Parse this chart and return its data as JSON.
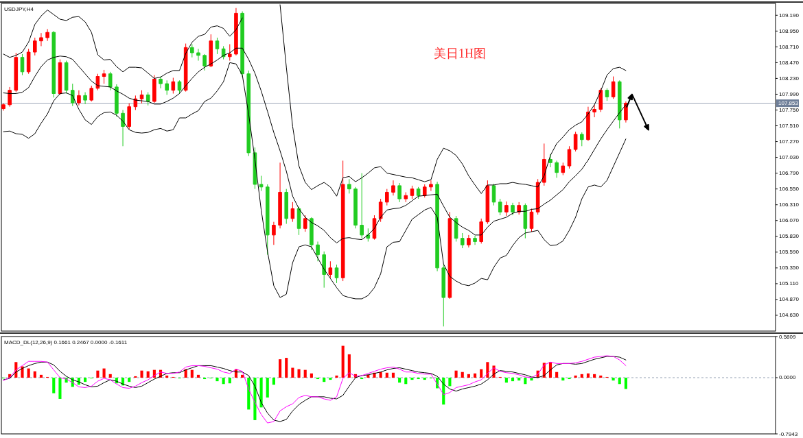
{
  "chart_data": [
    {
      "type": "candlestick",
      "title": "美日1H图",
      "subtitle": "USDJPY,H4",
      "categories": [
        null,
        null,
        null,
        null,
        null,
        null,
        null,
        null,
        null,
        null,
        null,
        null,
        null,
        null,
        null,
        null,
        null,
        null,
        null,
        null,
        null,
        null,
        null,
        null,
        null,
        null,
        null,
        null,
        null,
        null,
        null,
        null,
        null,
        null,
        null,
        null,
        null,
        null,
        null,
        null,
        null,
        null,
        null,
        null,
        null,
        null,
        null,
        null,
        null,
        null,
        null,
        null,
        null,
        null,
        null,
        null,
        null,
        null,
        null,
        null,
        null,
        null,
        null,
        null,
        null,
        null,
        null,
        null,
        null,
        null,
        null,
        null,
        null,
        null,
        null,
        null,
        null,
        null,
        null,
        null,
        null,
        null,
        null,
        null,
        null,
        null,
        null,
        null,
        null,
        null,
        null,
        null,
        null,
        null,
        null,
        null,
        null,
        null,
        null,
        null
      ],
      "ohlc": [
        [
          107.77,
          107.85,
          107.74,
          107.83
        ],
        [
          107.83,
          108.1,
          107.8,
          108.05
        ],
        [
          108.05,
          108.62,
          108.02,
          108.55
        ],
        [
          108.55,
          108.6,
          108.28,
          108.33
        ],
        [
          108.33,
          108.68,
          108.3,
          108.63
        ],
        [
          108.63,
          108.85,
          108.58,
          108.8
        ],
        [
          108.8,
          108.92,
          108.72,
          108.85
        ],
        [
          108.85,
          108.98,
          108.8,
          108.93
        ],
        [
          108.93,
          108.95,
          107.94,
          108.0
        ],
        [
          108.0,
          108.52,
          107.98,
          108.47
        ],
        [
          108.47,
          108.5,
          108.0,
          108.05
        ],
        [
          108.05,
          108.15,
          107.81,
          107.86
        ],
        [
          107.86,
          108.05,
          107.82,
          107.97
        ],
        [
          107.97,
          108.02,
          107.84,
          107.9
        ],
        [
          107.9,
          108.12,
          107.88,
          108.08
        ],
        [
          108.08,
          108.3,
          108.05,
          108.26
        ],
        [
          108.26,
          108.36,
          108.15,
          108.3
        ],
        [
          108.3,
          108.33,
          108.05,
          108.1
        ],
        [
          108.1,
          108.14,
          107.65,
          107.7
        ],
        [
          107.7,
          107.75,
          107.2,
          107.5
        ],
        [
          107.5,
          107.85,
          107.46,
          107.8
        ],
        [
          107.8,
          107.97,
          107.75,
          107.92
        ],
        [
          107.92,
          108.05,
          107.85,
          107.98
        ],
        [
          107.98,
          108.02,
          107.82,
          107.88
        ],
        [
          107.88,
          108.28,
          107.86,
          108.22
        ],
        [
          108.22,
          108.26,
          108.08,
          108.15
        ],
        [
          108.15,
          108.2,
          107.98,
          108.05
        ],
        [
          108.05,
          108.24,
          108.0,
          108.18
        ],
        [
          108.18,
          108.2,
          108.0,
          108.05
        ],
        [
          108.05,
          108.76,
          108.03,
          108.7
        ],
        [
          108.7,
          108.75,
          108.55,
          108.62
        ],
        [
          108.62,
          108.68,
          108.5,
          108.58
        ],
        [
          108.58,
          108.6,
          108.35,
          108.42
        ],
        [
          108.42,
          108.9,
          108.4,
          108.8
        ],
        [
          108.8,
          108.85,
          108.6,
          108.68
        ],
        [
          108.68,
          108.72,
          108.52,
          108.56
        ],
        [
          108.56,
          108.75,
          108.5,
          108.6
        ],
        [
          108.6,
          109.3,
          108.58,
          109.22
        ],
        [
          109.22,
          109.25,
          108.25,
          108.3
        ],
        [
          108.3,
          108.35,
          107.05,
          107.1
        ],
        [
          107.1,
          107.18,
          106.55,
          106.62
        ],
        [
          106.62,
          106.75,
          106.52,
          106.58
        ],
        [
          106.58,
          106.62,
          105.55,
          105.85
        ],
        [
          105.85,
          106.05,
          105.7,
          106.0
        ],
        [
          106.0,
          106.95,
          105.95,
          106.5
        ],
        [
          106.5,
          106.55,
          106.02,
          106.1
        ],
        [
          106.1,
          106.35,
          106.05,
          106.25
        ],
        [
          106.25,
          106.28,
          105.85,
          105.95
        ],
        [
          105.95,
          106.15,
          105.9,
          106.1
        ],
        [
          106.1,
          106.12,
          105.62,
          105.7
        ],
        [
          105.7,
          105.75,
          105.45,
          105.55
        ],
        [
          105.55,
          105.6,
          105.05,
          105.25
        ],
        [
          105.25,
          105.45,
          105.2,
          105.35
        ],
        [
          105.35,
          105.4,
          105.12,
          105.2
        ],
        [
          105.2,
          106.98,
          105.15,
          106.62
        ],
        [
          106.62,
          106.7,
          106.48,
          106.55
        ],
        [
          106.55,
          106.58,
          105.95,
          106.0
        ],
        [
          106.0,
          106.79,
          105.8,
          105.85
        ],
        [
          105.85,
          105.95,
          105.75,
          105.8
        ],
        [
          105.8,
          106.15,
          105.78,
          106.1
        ],
        [
          106.1,
          106.4,
          106.05,
          106.35
        ],
        [
          106.35,
          106.55,
          106.3,
          106.5
        ],
        [
          106.5,
          106.68,
          106.45,
          106.6
        ],
        [
          106.6,
          106.64,
          106.35,
          106.4
        ],
        [
          106.4,
          106.5,
          106.35,
          106.45
        ],
        [
          106.45,
          106.6,
          106.4,
          106.55
        ],
        [
          106.55,
          106.58,
          106.4,
          106.45
        ],
        [
          106.45,
          106.62,
          106.42,
          106.58
        ],
        [
          106.58,
          106.68,
          106.52,
          106.62
        ],
        [
          106.62,
          106.66,
          105.3,
          105.35
        ],
        [
          105.35,
          105.4,
          104.46,
          104.9
        ],
        [
          104.9,
          106.2,
          104.88,
          106.1
        ],
        [
          106.1,
          106.14,
          105.75,
          105.8
        ],
        [
          105.8,
          105.88,
          105.65,
          105.7
        ],
        [
          105.7,
          105.85,
          105.66,
          105.8
        ],
        [
          105.8,
          105.84,
          105.7,
          105.75
        ],
        [
          105.75,
          106.1,
          105.72,
          106.05
        ],
        [
          106.05,
          106.68,
          106.02,
          106.6
        ],
        [
          106.6,
          106.63,
          106.3,
          106.35
        ],
        [
          106.35,
          106.4,
          106.15,
          106.2
        ],
        [
          106.2,
          106.36,
          106.14,
          106.3
        ],
        [
          106.3,
          106.34,
          106.15,
          106.2
        ],
        [
          106.2,
          106.35,
          106.16,
          106.3
        ],
        [
          106.3,
          106.33,
          105.8,
          105.95
        ],
        [
          105.95,
          106.25,
          105.9,
          106.2
        ],
        [
          106.2,
          106.7,
          106.16,
          106.65
        ],
        [
          106.65,
          107.24,
          106.6,
          107.0
        ],
        [
          107.0,
          107.08,
          106.88,
          106.95
        ],
        [
          106.95,
          106.98,
          106.72,
          106.8
        ],
        [
          106.8,
          106.95,
          106.76,
          106.9
        ],
        [
          106.9,
          107.2,
          106.86,
          107.15
        ],
        [
          107.15,
          107.42,
          107.12,
          107.38
        ],
        [
          107.38,
          107.41,
          107.2,
          107.3
        ],
        [
          107.3,
          107.8,
          107.28,
          107.72
        ],
        [
          107.72,
          107.83,
          107.64,
          107.76
        ],
        [
          107.76,
          108.08,
          107.72,
          108.05
        ],
        [
          108.05,
          108.08,
          107.89,
          107.95
        ],
        [
          107.95,
          108.26,
          107.92,
          108.18
        ],
        [
          108.18,
          108.2,
          107.47,
          107.6
        ],
        [
          107.6,
          107.88,
          107.56,
          107.853
        ]
      ],
      "colors": [
        "#ff0000",
        "#ff0000",
        "#ff0000",
        "#22cc22",
        "#ff0000",
        "#ff0000",
        "#ff0000",
        "#ff0000",
        "#22cc22",
        "#ff0000",
        "#22cc22",
        "#22cc22",
        "#ff0000",
        "#22cc22",
        "#ff0000",
        "#ff0000",
        "#ff0000",
        "#22cc22",
        "#22cc22",
        "#22cc22",
        "#ff0000",
        "#ff0000",
        "#ff0000",
        "#22cc22",
        "#ff0000",
        "#22cc22",
        "#22cc22",
        "#ff0000",
        "#22cc22",
        "#ff0000",
        "#22cc22",
        "#22cc22",
        "#22cc22",
        "#ff0000",
        "#22cc22",
        "#22cc22",
        "#ff0000",
        "#ff0000",
        "#22cc22",
        "#22cc22",
        "#22cc22",
        "#22cc22",
        "#22cc22",
        "#ff0000",
        "#ff0000",
        "#22cc22",
        "#ff0000",
        "#22cc22",
        "#ff0000",
        "#22cc22",
        "#22cc22",
        "#22cc22",
        "#ff0000",
        "#22cc22",
        "#ff0000",
        "#22cc22",
        "#22cc22",
        "#22cc22",
        "#22cc22",
        "#ff0000",
        "#ff0000",
        "#ff0000",
        "#ff0000",
        "#22cc22",
        "#ff0000",
        "#ff0000",
        "#22cc22",
        "#ff0000",
        "#ff0000",
        "#22cc22",
        "#22cc22",
        "#ff0000",
        "#22cc22",
        "#22cc22",
        "#ff0000",
        "#22cc22",
        "#ff0000",
        "#ff0000",
        "#22cc22",
        "#22cc22",
        "#ff0000",
        "#22cc22",
        "#ff0000",
        "#22cc22",
        "#ff0000",
        "#ff0000",
        "#ff0000",
        "#22cc22",
        "#22cc22",
        "#ff0000",
        "#ff0000",
        "#ff0000",
        "#22cc22",
        "#ff0000",
        "#ff0000",
        "#ff0000",
        "#22cc22",
        "#ff0000",
        "#22cc22",
        "#ff0000"
      ],
      "series": [
        {
          "type": "line",
          "color": "#000000",
          "values": [
            108.6,
            108.55,
            108.58,
            108.63,
            108.78,
            109.05,
            109.18,
            109.27,
            109.2,
            109.13,
            109.11,
            109.16,
            109.17,
            109.09,
            108.93,
            108.59,
            108.51,
            108.52,
            108.41,
            108.33,
            108.4,
            108.4,
            108.39,
            108.31,
            108.23,
            108.25,
            108.31,
            108.35,
            108.35,
            108.61,
            108.78,
            108.87,
            108.9,
            109.01,
            109.03,
            108.99,
            108.87,
            108.97,
            109.15,
            null,
            null,
            null,
            null,
            null,
            109.35,
            108.4,
            107.5,
            106.9,
            106.65,
            106.54,
            106.6,
            106.65,
            106.58,
            106.44,
            106.72,
            106.74,
            106.66,
            106.72,
            106.79,
            106.87,
            106.89,
            106.79,
            106.77,
            106.75,
            106.73,
            106.72,
            106.69,
            106.66,
            106.69,
            107.0,
            107.17,
            107.13,
            107.06,
            106.93,
            106.75,
            106.61,
            106.48,
            106.61,
            106.61,
            106.63,
            106.63,
            106.65,
            106.63,
            106.62,
            106.6,
            106.58,
            106.75,
            107.06,
            107.24,
            107.34,
            107.45,
            107.52,
            107.57,
            107.69,
            107.83,
            108.04,
            108.28,
            108.38,
            108.4,
            108.35
          ]
        },
        {
          "type": "line",
          "color": "#000000",
          "values": [
            108.01,
            108.0,
            108.0,
            108.02,
            108.09,
            108.26,
            108.41,
            108.51,
            108.55,
            108.57,
            108.56,
            108.52,
            108.41,
            108.3,
            108.19,
            108.12,
            108.11,
            108.1,
            108.04,
            107.99,
            107.93,
            107.9,
            107.89,
            107.88,
            107.84,
            107.84,
            107.88,
            107.93,
            108.0,
            108.12,
            108.23,
            108.33,
            108.4,
            108.45,
            108.51,
            108.58,
            108.62,
            108.69,
            108.69,
            108.52,
            108.31,
            108.04,
            107.73,
            107.41,
            107.13,
            106.82,
            106.44,
            106.25,
            106.12,
            106.04,
            105.99,
            105.92,
            105.81,
            105.73,
            105.8,
            105.81,
            105.79,
            105.78,
            105.85,
            105.95,
            106.12,
            106.23,
            106.25,
            106.26,
            106.3,
            106.37,
            106.44,
            106.45,
            106.46,
            106.47,
            106.29,
            106.12,
            106.04,
            105.97,
            105.92,
            105.85,
            105.85,
            105.97,
            106.06,
            106.09,
            106.12,
            106.18,
            106.21,
            106.21,
            106.24,
            106.25,
            106.32,
            106.38,
            106.46,
            106.54,
            106.66,
            106.75,
            106.85,
            106.99,
            107.15,
            107.31,
            107.45,
            107.58,
            107.71,
            107.83
          ]
        },
        {
          "type": "line",
          "color": "#000000",
          "values": [
            107.42,
            107.43,
            107.39,
            107.38,
            107.32,
            107.39,
            107.55,
            107.69,
            107.89,
            108.0,
            108.01,
            107.97,
            107.76,
            107.6,
            107.53,
            107.65,
            107.71,
            107.72,
            107.67,
            107.58,
            107.45,
            107.41,
            107.4,
            107.41,
            107.45,
            107.47,
            107.43,
            107.45,
            107.63,
            107.63,
            107.69,
            107.74,
            107.88,
            107.93,
            108.04,
            108.18,
            108.47,
            108.45,
            108.28,
            107.69,
            107.0,
            106.23,
            105.6,
            105.08,
            104.9,
            104.95,
            105.43,
            105.67,
            105.7,
            105.67,
            105.5,
            105.33,
            105.19,
            105.05,
            104.93,
            104.9,
            104.88,
            104.88,
            104.93,
            105.05,
            105.26,
            105.67,
            105.74,
            105.75,
            105.92,
            106.09,
            106.16,
            106.23,
            106.27,
            106.12,
            105.41,
            105.22,
            105.15,
            105.1,
            105.08,
            105.12,
            105.19,
            105.17,
            105.36,
            105.5,
            105.54,
            105.69,
            105.81,
            105.88,
            105.9,
            105.92,
            105.78,
            105.69,
            105.7,
            105.76,
            105.92,
            106.12,
            106.4,
            106.58,
            106.61,
            106.58,
            106.68,
            106.89,
            107.1,
            107.31
          ]
        }
      ],
      "ylim": [
        104.39,
        109.37
      ],
      "yticks": [
        {
          "value": 109.19,
          "label": "109.190"
        },
        {
          "value": 108.95,
          "label": "108.950"
        },
        {
          "value": 108.71,
          "label": "108.710"
        },
        {
          "value": 108.47,
          "label": "108.470"
        },
        {
          "value": 108.23,
          "label": "108.230"
        },
        {
          "value": 107.99,
          "label": "107.990"
        },
        {
          "value": 107.75,
          "label": "107.750"
        },
        {
          "value": 107.51,
          "label": "107.510"
        },
        {
          "value": 107.27,
          "label": "107.270"
        },
        {
          "value": 107.03,
          "label": "107.030"
        },
        {
          "value": 106.79,
          "label": "106.790"
        },
        {
          "value": 106.55,
          "label": "106.550"
        },
        {
          "value": 106.31,
          "label": "106.310"
        },
        {
          "value": 106.07,
          "label": "106.070"
        },
        {
          "value": 105.83,
          "label": "105.830"
        },
        {
          "value": 105.59,
          "label": "105.590"
        },
        {
          "value": 105.35,
          "label": "105.350"
        },
        {
          "value": 105.11,
          "label": "105.110"
        },
        {
          "value": 104.87,
          "label": "104.870"
        },
        {
          "value": 104.63,
          "label": "104.630"
        }
      ],
      "ref_lines": [
        {
          "axis": "y",
          "value": 107.853,
          "label": "107.853",
          "color": "#6f7f99"
        }
      ],
      "tick_labels": "y"
    },
    {
      "type": "bar",
      "title": "MACD_DL(12,26,9) 0.1661 0.2467 0.0000 -0.1611",
      "categories": [
        null,
        null,
        null,
        null,
        null,
        null,
        null,
        null,
        null,
        null,
        null,
        null,
        null,
        null,
        null,
        null,
        null,
        null,
        null,
        null,
        null,
        null,
        null,
        null,
        null,
        null,
        null,
        null,
        null,
        null,
        null,
        null,
        null,
        null,
        null,
        null,
        null,
        null,
        null,
        null,
        null,
        null,
        null,
        null,
        null,
        null,
        null,
        null,
        null,
        null,
        null,
        null,
        null,
        null,
        null,
        null,
        null,
        null,
        null,
        null,
        null,
        null,
        null,
        null,
        null,
        null,
        null,
        null,
        null,
        null,
        null,
        null,
        null,
        null,
        null,
        null,
        null,
        null,
        null,
        null,
        null,
        null,
        null,
        null,
        null,
        null,
        null,
        null,
        null,
        null,
        null,
        null,
        null,
        null,
        null,
        null,
        null,
        null,
        null,
        null
      ],
      "series": [
        {
          "type": "bar",
          "colors": [
            "#00ff00",
            "#ff0000",
            "#ff0000",
            "#ff0000",
            "#ff0000",
            "#ff0000",
            "#ff0000",
            "#ff0000",
            "#00ff00",
            "#00ff00",
            "#00ff00",
            "#00ff00",
            "#00ff00",
            "#00ff00",
            "#00ff00",
            "#ff0000",
            "#ff0000",
            "#ff0000",
            "#00ff00",
            "#00ff00",
            "#00ff00",
            "#ff0000",
            "#ff0000",
            "#ff0000",
            "#ff0000",
            "#ff0000",
            "#ff0000",
            "#ff0000",
            "#00ff00",
            "#ff0000",
            "#ff0000",
            "#ff0000",
            "#00ff00",
            "#00ff00",
            "#00ff00",
            "#00ff00",
            "#00ff00",
            "#ff0000",
            "#ff0000",
            "#00ff00",
            "#00ff00",
            "#00ff00",
            "#00ff00",
            "#00ff00",
            "#ff0000",
            "#ff0000",
            "#ff0000",
            "#ff0000",
            "#ff0000",
            "#ff0000",
            "#00ff00",
            "#00ff00",
            "#00ff00",
            "#ff0000",
            "#ff0000",
            "#ff0000",
            "#ff0000",
            "#00ff00",
            "#ff0000",
            "#ff0000",
            "#ff0000",
            "#ff0000",
            "#ff0000",
            "#00ff00",
            "#00ff00",
            "#00ff00",
            "#00ff00",
            "#00ff00",
            "#00ff00",
            "#00ff00",
            "#00ff00",
            "#00ff00",
            "#ff0000",
            "#ff0000",
            "#ff0000",
            "#ff0000",
            "#ff0000",
            "#ff0000",
            "#ff0000",
            "#ff0000",
            "#00ff00",
            "#00ff00",
            "#00ff00",
            "#00ff00",
            "#00ff00",
            "#ff0000",
            "#ff0000",
            "#ff0000",
            "#ff0000",
            "#00ff00",
            "#00ff00",
            "#ff0000",
            "#ff0000",
            "#ff0000",
            "#ff0000",
            "#ff0000",
            "#ff0000",
            "#00ff00",
            "#00ff00",
            "#00ff00"
          ],
          "values": [
            -0.01,
            0.05,
            0.22,
            0.16,
            0.13,
            0.09,
            0.04,
            0.01,
            -0.22,
            -0.3,
            -0.07,
            -0.13,
            -0.1,
            -0.06,
            -0.01,
            0.1,
            0.13,
            0.05,
            -0.08,
            -0.11,
            -0.06,
            0.02,
            0.1,
            0.09,
            0.11,
            0.11,
            0.03,
            0.01,
            -0.01,
            0.12,
            0.11,
            0.04,
            -0.02,
            -0.01,
            -0.05,
            -0.09,
            -0.08,
            0.12,
            0.04,
            -0.45,
            -0.6,
            -0.42,
            -0.28,
            -0.1,
            0.26,
            0.28,
            0.14,
            0.12,
            0.11,
            0.06,
            -0.02,
            -0.06,
            -0.03,
            0.03,
            0.45,
            0.33,
            0.05,
            -0.02,
            0.04,
            0.07,
            0.08,
            0.07,
            0.07,
            -0.07,
            -0.09,
            -0.03,
            -0.02,
            -0.03,
            -0.01,
            -0.15,
            -0.38,
            -0.12,
            0.1,
            0.08,
            0.05,
            0.06,
            0.12,
            0.22,
            0.17,
            0.01,
            -0.07,
            -0.05,
            -0.04,
            -0.09,
            -0.04,
            0.1,
            0.21,
            0.22,
            0.08,
            -0.04,
            -0.02,
            0.03,
            0.05,
            0.06,
            0.05,
            0.03,
            0.01,
            -0.04,
            -0.09,
            -0.16
          ]
        },
        {
          "type": "line",
          "color": "#000000",
          "values": [
            -0.03,
            -0.01,
            0.08,
            0.13,
            0.17,
            0.2,
            0.22,
            0.22,
            0.18,
            0.09,
            0.02,
            -0.03,
            -0.06,
            -0.1,
            -0.13,
            -0.12,
            -0.07,
            -0.03,
            -0.05,
            -0.09,
            -0.12,
            -0.14,
            -0.12,
            -0.07,
            -0.02,
            0.02,
            0.06,
            0.07,
            0.07,
            0.11,
            0.14,
            0.17,
            0.17,
            0.17,
            0.15,
            0.13,
            0.1,
            0.08,
            0.08,
            0.03,
            -0.12,
            -0.35,
            -0.5,
            -0.6,
            -0.62,
            -0.59,
            -0.47,
            -0.38,
            -0.32,
            -0.27,
            -0.27,
            -0.27,
            -0.29,
            -0.3,
            -0.25,
            -0.12,
            0.0,
            0.03,
            0.04,
            0.06,
            0.08,
            0.11,
            0.13,
            0.14,
            0.12,
            0.1,
            0.08,
            0.07,
            0.06,
            0.02,
            -0.09,
            -0.16,
            -0.19,
            -0.16,
            -0.14,
            -0.12,
            -0.09,
            -0.03,
            0.05,
            0.1,
            0.09,
            0.08,
            0.06,
            0.04,
            0.01,
            0.0,
            0.03,
            0.11,
            0.18,
            0.2,
            0.2,
            0.19,
            0.2,
            0.23,
            0.26,
            0.28,
            0.3,
            0.3,
            0.29,
            0.25
          ]
        },
        {
          "type": "line",
          "color": "#ff00ff",
          "values": [
            -0.04,
            0.0,
            0.11,
            0.17,
            0.23,
            0.23,
            0.23,
            0.22,
            0.11,
            0.0,
            -0.02,
            -0.07,
            -0.13,
            -0.14,
            -0.12,
            -0.05,
            -0.01,
            -0.03,
            -0.09,
            -0.14,
            -0.15,
            -0.12,
            -0.07,
            -0.03,
            0.03,
            0.08,
            0.06,
            0.06,
            0.08,
            0.15,
            0.17,
            0.17,
            0.16,
            0.14,
            0.12,
            0.08,
            0.06,
            0.12,
            0.09,
            -0.16,
            -0.35,
            -0.52,
            -0.64,
            -0.62,
            -0.47,
            -0.41,
            -0.37,
            -0.28,
            -0.25,
            -0.27,
            -0.27,
            -0.3,
            -0.32,
            -0.27,
            -0.01,
            0.07,
            0.02,
            0.03,
            0.06,
            0.09,
            0.12,
            0.14,
            0.15,
            0.12,
            0.08,
            0.08,
            0.06,
            0.05,
            0.05,
            -0.09,
            -0.24,
            -0.21,
            -0.14,
            -0.12,
            -0.1,
            -0.06,
            -0.03,
            0.06,
            0.14,
            0.09,
            0.07,
            0.06,
            0.04,
            0.01,
            0.0,
            0.05,
            0.18,
            0.22,
            0.2,
            0.2,
            0.2,
            0.21,
            0.23,
            0.26,
            0.29,
            0.3,
            0.31,
            0.3,
            0.25,
            0.17
          ]
        }
      ],
      "ylim": [
        -0.7943,
        0.5809
      ],
      "yticks": [
        0.5809,
        {
          "value": 0,
          "label": "0.0000"
        },
        -0.7943
      ],
      "ref_lines": [
        {
          "axis": "y",
          "value": 0,
          "color": "#6f7f99",
          "line_style": "dashed"
        }
      ],
      "tick_labels": "y"
    }
  ]
}
